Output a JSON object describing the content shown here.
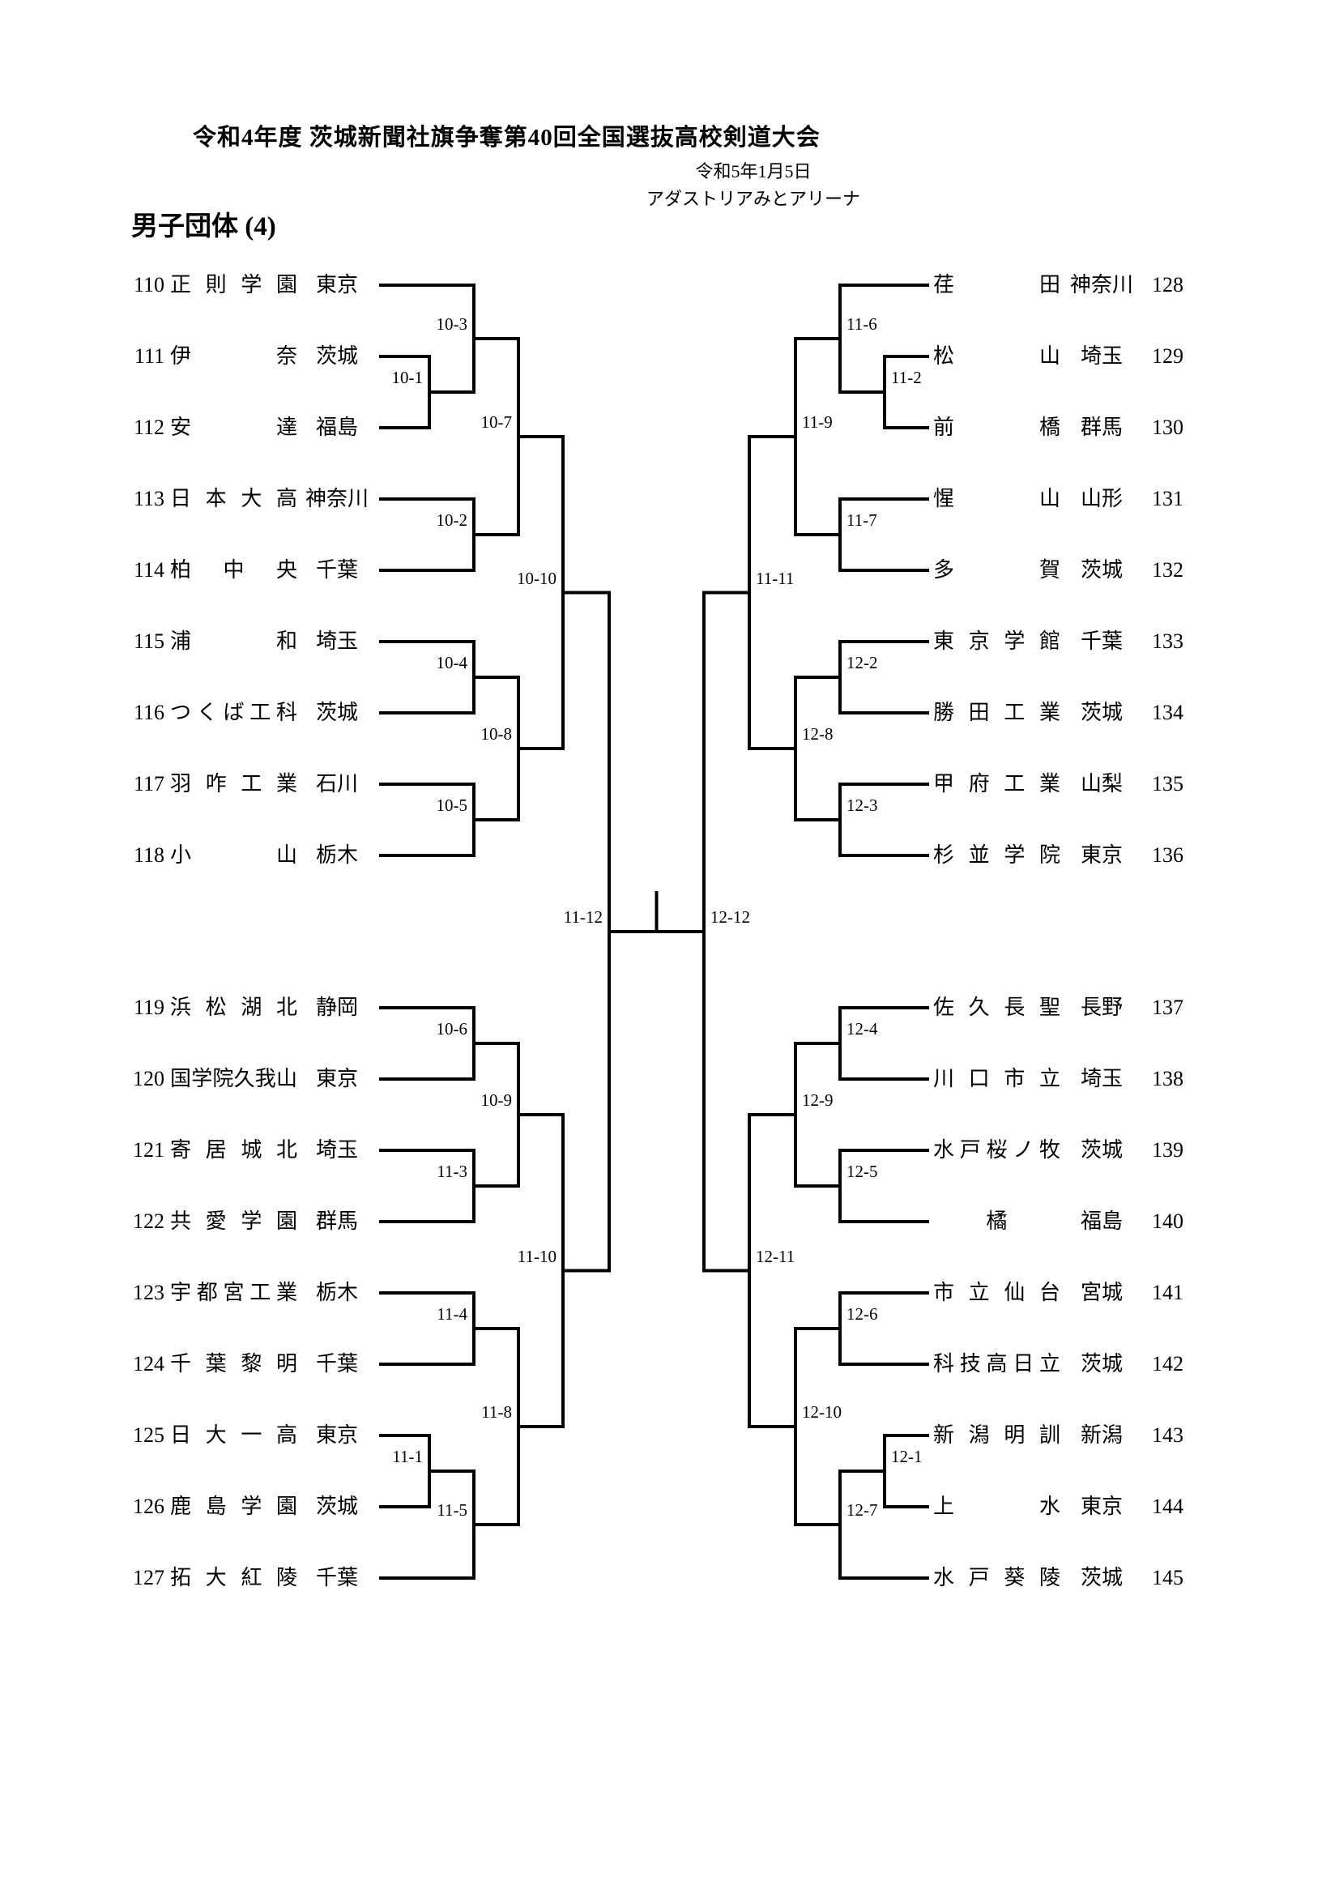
{
  "header": {
    "title": "令和4年度 茨城新聞社旗争奪第40回全国選抜高校剣道大会",
    "date": "令和5年1月5日",
    "venue": "アダストリアみとアリーナ",
    "section": "男子団体 (4)"
  },
  "bracket": {
    "teams": [
      {
        "num": "110",
        "name": "正則学園",
        "pref": "東京",
        "side": "L"
      },
      {
        "num": "111",
        "name": "伊奈",
        "pref": "茨城",
        "side": "L"
      },
      {
        "num": "112",
        "name": "安達",
        "pref": "福島",
        "side": "L"
      },
      {
        "num": "113",
        "name": "日本大高",
        "pref": "神奈川",
        "side": "L"
      },
      {
        "num": "114",
        "name": "柏中央",
        "pref": "千葉",
        "side": "L"
      },
      {
        "num": "115",
        "name": "浦和",
        "pref": "埼玉",
        "side": "L"
      },
      {
        "num": "116",
        "name": "つくば工科",
        "pref": "茨城",
        "side": "L"
      },
      {
        "num": "117",
        "name": "羽咋工業",
        "pref": "石川",
        "side": "L"
      },
      {
        "num": "118",
        "name": "小山",
        "pref": "栃木",
        "side": "L"
      },
      {
        "num": "119",
        "name": "浜松湖北",
        "pref": "静岡",
        "side": "L"
      },
      {
        "num": "120",
        "name": "国学院久我山",
        "pref": "東京",
        "side": "L"
      },
      {
        "num": "121",
        "name": "寄居城北",
        "pref": "埼玉",
        "side": "L"
      },
      {
        "num": "122",
        "name": "共愛学園",
        "pref": "群馬",
        "side": "L"
      },
      {
        "num": "123",
        "name": "宇都宮工業",
        "pref": "栃木",
        "side": "L"
      },
      {
        "num": "124",
        "name": "千葉黎明",
        "pref": "千葉",
        "side": "L"
      },
      {
        "num": "125",
        "name": "日大一高",
        "pref": "東京",
        "side": "L"
      },
      {
        "num": "126",
        "name": "鹿島学園",
        "pref": "茨城",
        "side": "L"
      },
      {
        "num": "127",
        "name": "拓大紅陵",
        "pref": "千葉",
        "side": "L"
      },
      {
        "num": "128",
        "name": "荏田",
        "pref": "神奈川",
        "side": "R"
      },
      {
        "num": "129",
        "name": "松山",
        "pref": "埼玉",
        "side": "R"
      },
      {
        "num": "130",
        "name": "前橋",
        "pref": "群馬",
        "side": "R"
      },
      {
        "num": "131",
        "name": "惺山",
        "pref": "山形",
        "side": "R"
      },
      {
        "num": "132",
        "name": "多賀",
        "pref": "茨城",
        "side": "R"
      },
      {
        "num": "133",
        "name": "東京学館",
        "pref": "千葉",
        "side": "R"
      },
      {
        "num": "134",
        "name": "勝田工業",
        "pref": "茨城",
        "side": "R"
      },
      {
        "num": "135",
        "name": "甲府工業",
        "pref": "山梨",
        "side": "R"
      },
      {
        "num": "136",
        "name": "杉並学院",
        "pref": "東京",
        "side": "R"
      },
      {
        "num": "137",
        "name": "佐久長聖",
        "pref": "長野",
        "side": "R"
      },
      {
        "num": "138",
        "name": "川口市立",
        "pref": "埼玉",
        "side": "R"
      },
      {
        "num": "139",
        "name": "水戸桜ノ牧",
        "pref": "茨城",
        "side": "R"
      },
      {
        "num": "140",
        "name": "橘",
        "pref": "福島",
        "side": "R"
      },
      {
        "num": "141",
        "name": "市立仙台",
        "pref": "宮城",
        "side": "R"
      },
      {
        "num": "142",
        "name": "科技高日立",
        "pref": "茨城",
        "side": "R"
      },
      {
        "num": "143",
        "name": "新潟明訓",
        "pref": "新潟",
        "side": "R"
      },
      {
        "num": "144",
        "name": "上水",
        "pref": "東京",
        "side": "R"
      },
      {
        "num": "145",
        "name": "水戸葵陵",
        "pref": "茨城",
        "side": "R"
      }
    ],
    "matches": [
      {
        "id": "10-1",
        "side": "L",
        "col": 1,
        "a": "T111",
        "b": "T112"
      },
      {
        "id": "10-3",
        "side": "L",
        "col": 2,
        "a": "T110",
        "b": "M10-1"
      },
      {
        "id": "10-2",
        "side": "L",
        "col": 2,
        "a": "T113",
        "b": "T114"
      },
      {
        "id": "10-7",
        "side": "L",
        "col": 3,
        "a": "M10-3",
        "b": "M10-2"
      },
      {
        "id": "10-4",
        "side": "L",
        "col": 2,
        "a": "T115",
        "b": "T116"
      },
      {
        "id": "10-5",
        "side": "L",
        "col": 2,
        "a": "T117",
        "b": "T118"
      },
      {
        "id": "10-8",
        "side": "L",
        "col": 3,
        "a": "M10-4",
        "b": "M10-5"
      },
      {
        "id": "10-10",
        "side": "L",
        "col": 4,
        "a": "M10-7",
        "b": "M10-8"
      },
      {
        "id": "10-6",
        "side": "L",
        "col": 2,
        "a": "T119",
        "b": "T120"
      },
      {
        "id": "11-3",
        "side": "L",
        "col": 2,
        "a": "T121",
        "b": "T122"
      },
      {
        "id": "10-9",
        "side": "L",
        "col": 3,
        "a": "M10-6",
        "b": "M11-3"
      },
      {
        "id": "11-4",
        "side": "L",
        "col": 2,
        "a": "T123",
        "b": "T124"
      },
      {
        "id": "11-1",
        "side": "L",
        "col": 1,
        "a": "T125",
        "b": "T126"
      },
      {
        "id": "11-5",
        "side": "L",
        "col": 2,
        "a": "M11-1",
        "b": "T127"
      },
      {
        "id": "11-8",
        "side": "L",
        "col": 3,
        "a": "M11-4",
        "b": "M11-5"
      },
      {
        "id": "11-10",
        "side": "L",
        "col": 4,
        "a": "M10-9",
        "b": "M11-8"
      },
      {
        "id": "11-12",
        "side": "L",
        "col": 5,
        "a": "M10-10",
        "b": "M11-10"
      },
      {
        "id": "11-2",
        "side": "R",
        "col": 1,
        "a": "T129",
        "b": "T130"
      },
      {
        "id": "11-6",
        "side": "R",
        "col": 2,
        "a": "T128",
        "b": "M11-2"
      },
      {
        "id": "11-7",
        "side": "R",
        "col": 2,
        "a": "T131",
        "b": "T132"
      },
      {
        "id": "11-9",
        "side": "R",
        "col": 3,
        "a": "M11-6",
        "b": "M11-7"
      },
      {
        "id": "12-2",
        "side": "R",
        "col": 2,
        "a": "T133",
        "b": "T134"
      },
      {
        "id": "12-3",
        "side": "R",
        "col": 2,
        "a": "T135",
        "b": "T136"
      },
      {
        "id": "12-8",
        "side": "R",
        "col": 3,
        "a": "M12-2",
        "b": "M12-3"
      },
      {
        "id": "11-11",
        "side": "R",
        "col": 4,
        "a": "M11-9",
        "b": "M12-8"
      },
      {
        "id": "12-4",
        "side": "R",
        "col": 2,
        "a": "T137",
        "b": "T138"
      },
      {
        "id": "12-5",
        "side": "R",
        "col": 2,
        "a": "T139",
        "b": "T140"
      },
      {
        "id": "12-9",
        "side": "R",
        "col": 3,
        "a": "M12-4",
        "b": "M12-5"
      },
      {
        "id": "12-6",
        "side": "R",
        "col": 2,
        "a": "T141",
        "b": "T142"
      },
      {
        "id": "12-1",
        "side": "R",
        "col": 1,
        "a": "T143",
        "b": "T144"
      },
      {
        "id": "12-7",
        "side": "R",
        "col": 2,
        "a": "M12-1",
        "b": "T145"
      },
      {
        "id": "12-10",
        "side": "R",
        "col": 3,
        "a": "M12-6",
        "b": "M12-7"
      },
      {
        "id": "12-11",
        "side": "R",
        "col": 4,
        "a": "M12-9",
        "b": "M12-10"
      },
      {
        "id": "12-12",
        "side": "R",
        "col": 5,
        "a": "M11-11",
        "b": "M12-11"
      }
    ],
    "final": {
      "left": "11-12",
      "right": "12-12"
    },
    "line_color": "#000000"
  }
}
